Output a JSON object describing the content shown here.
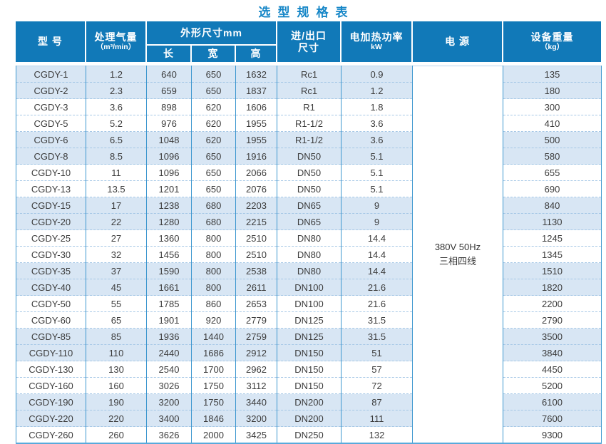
{
  "title": "选型规格表",
  "colors": {
    "title_blue": "#1586c7",
    "header_blue": "#1179b8",
    "stripe_blue": "#d8e6f4",
    "grid_blue": "#3d97cf",
    "dash_blue": "#a6c8e6",
    "bottom_line_blue": "#58aadc",
    "header_text": "#ffffff",
    "body_text": "#3c3c3c"
  },
  "table": {
    "headers": {
      "model": "型 号",
      "airflow_line1": "处理气量",
      "airflow_line2": "（m³/min）",
      "dimensions": "外形尺寸mm",
      "length": "长",
      "width": "宽",
      "height": "高",
      "port_line1": "进/出口",
      "port_line2": "尺寸",
      "heater_line1": "电加热功率",
      "heater_line2": "kW",
      "power": "电 源",
      "weight_line1": "设备重量",
      "weight_line2": "（kg）"
    },
    "power_supply": {
      "line1": "380V 50Hz",
      "line2": "三相四线"
    },
    "rows": [
      [
        "CGDY-1",
        "1.2",
        "640",
        "650",
        "1632",
        "Rc1",
        "0.9",
        "135"
      ],
      [
        "CGDY-2",
        "2.3",
        "659",
        "650",
        "1837",
        "Rc1",
        "1.2",
        "180"
      ],
      [
        "CGDY-3",
        "3.6",
        "898",
        "620",
        "1606",
        "R1",
        "1.8",
        "300"
      ],
      [
        "CGDY-5",
        "5.2",
        "976",
        "620",
        "1955",
        "R1-1/2",
        "3.6",
        "410"
      ],
      [
        "CGDY-6",
        "6.5",
        "1048",
        "620",
        "1955",
        "R1-1/2",
        "3.6",
        "500"
      ],
      [
        "CGDY-8",
        "8.5",
        "1096",
        "650",
        "1916",
        "DN50",
        "5.1",
        "580"
      ],
      [
        "CGDY-10",
        "11",
        "1096",
        "650",
        "2066",
        "DN50",
        "5.1",
        "655"
      ],
      [
        "CGDY-13",
        "13.5",
        "1201",
        "650",
        "2076",
        "DN50",
        "5.1",
        "690"
      ],
      [
        "CGDY-15",
        "17",
        "1238",
        "680",
        "2203",
        "DN65",
        "9",
        "840"
      ],
      [
        "CGDY-20",
        "22",
        "1280",
        "680",
        "2215",
        "DN65",
        "9",
        "1130"
      ],
      [
        "CGDY-25",
        "27",
        "1360",
        "800",
        "2510",
        "DN80",
        "14.4",
        "1245"
      ],
      [
        "CGDY-30",
        "32",
        "1456",
        "800",
        "2510",
        "DN80",
        "14.4",
        "1345"
      ],
      [
        "CGDY-35",
        "37",
        "1590",
        "800",
        "2538",
        "DN80",
        "14.4",
        "1510"
      ],
      [
        "CGDY-40",
        "45",
        "1661",
        "800",
        "2611",
        "DN100",
        "21.6",
        "1820"
      ],
      [
        "CGDY-50",
        "55",
        "1785",
        "860",
        "2653",
        "DN100",
        "21.6",
        "2200"
      ],
      [
        "CGDY-60",
        "65",
        "1901",
        "920",
        "2779",
        "DN125",
        "31.5",
        "2790"
      ],
      [
        "CGDY-85",
        "85",
        "1936",
        "1440",
        "2759",
        "DN125",
        "31.5",
        "3500"
      ],
      [
        "CGDY-110",
        "110",
        "2440",
        "1686",
        "2912",
        "DN150",
        "51",
        "3840"
      ],
      [
        "CGDY-130",
        "130",
        "2540",
        "1700",
        "2962",
        "DN150",
        "57",
        "4450"
      ],
      [
        "CGDY-160",
        "160",
        "3026",
        "1750",
        "3112",
        "DN150",
        "72",
        "5200"
      ],
      [
        "CGDY-190",
        "190",
        "3200",
        "1750",
        "3440",
        "DN200",
        "87",
        "6100"
      ],
      [
        "CGDY-220",
        "220",
        "3400",
        "1846",
        "3200",
        "DN200",
        "111",
        "7600"
      ],
      [
        "CGDY-260",
        "260",
        "3626",
        "2000",
        "3425",
        "DN250",
        "132",
        "9300"
      ]
    ]
  }
}
